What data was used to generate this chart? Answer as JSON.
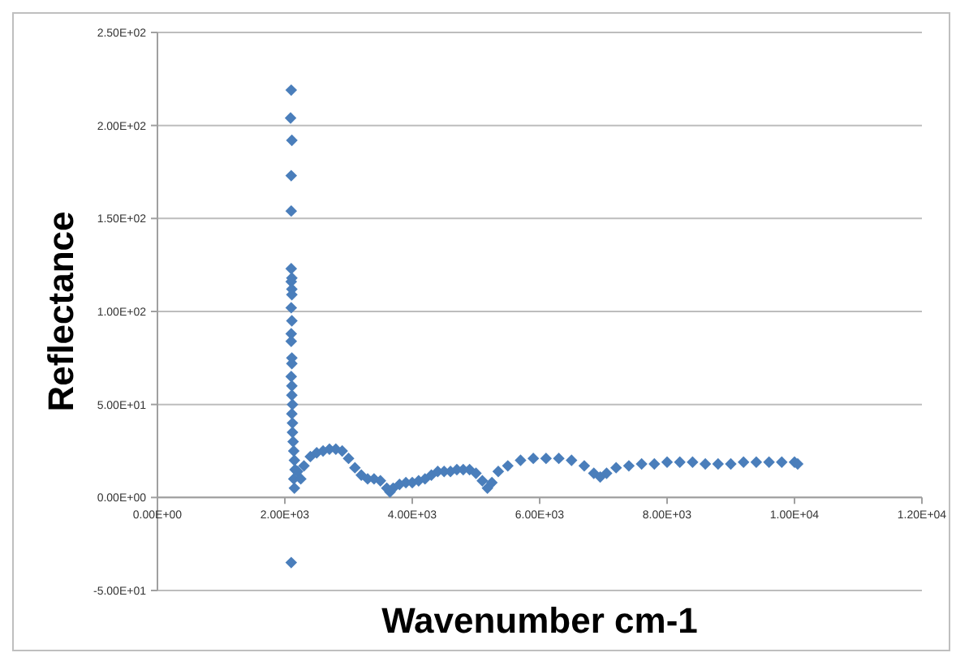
{
  "chart_data": {
    "type": "scatter",
    "xlabel": "Wavenumber cm-1",
    "ylabel": "Reflectance",
    "marker": "diamond",
    "grid": "y",
    "xlim": [
      0,
      12000
    ],
    "ylim": [
      -50,
      250
    ],
    "xticks": [
      {
        "value": 0,
        "label": "0.00E+00"
      },
      {
        "value": 2000,
        "label": "2.00E+03"
      },
      {
        "value": 4000,
        "label": "4.00E+03"
      },
      {
        "value": 6000,
        "label": "6.00E+03"
      },
      {
        "value": 8000,
        "label": "8.00E+03"
      },
      {
        "value": 10000,
        "label": "1.00E+04"
      },
      {
        "value": 12000,
        "label": "1.20E+04"
      }
    ],
    "yticks": [
      {
        "value": -50,
        "label": "-5.00E+01"
      },
      {
        "value": 0,
        "label": "0.00E+00"
      },
      {
        "value": 50,
        "label": "5.00E+01"
      },
      {
        "value": 100,
        "label": "1.00E+02"
      },
      {
        "value": 150,
        "label": "1.50E+02"
      },
      {
        "value": 200,
        "label": "2.00E+02"
      },
      {
        "value": 250,
        "label": "2.50E+02"
      }
    ],
    "series": [
      {
        "color": "#4a7ebb",
        "x": [
          2100,
          2090,
          2110,
          2100,
          2100,
          2100,
          2110,
          2100,
          2110,
          2110,
          2100,
          2110,
          2100,
          2100,
          2110,
          2110,
          2100,
          2110,
          2110,
          2120,
          2110,
          2120,
          2120,
          2130,
          2140,
          2150,
          2160,
          2140,
          2150,
          2100,
          2200,
          2250,
          2300,
          2400,
          2500,
          2600,
          2700,
          2800,
          2900,
          3000,
          3100,
          3200,
          3300,
          3400,
          3500,
          3600,
          3650,
          3700,
          3800,
          3900,
          4000,
          4100,
          4200,
          4300,
          4400,
          4500,
          4600,
          4700,
          4800,
          4900,
          5000,
          5100,
          5180,
          5250,
          5350,
          5500,
          5700,
          5900,
          6100,
          6300,
          6500,
          6700,
          6850,
          6950,
          7050,
          7200,
          7400,
          7600,
          7800,
          8000,
          8200,
          8400,
          8600,
          8800,
          9000,
          9200,
          9400,
          9600,
          9800,
          10000,
          10050
        ],
        "values": [
          219,
          204,
          192,
          173,
          154,
          123,
          118,
          116,
          112,
          109,
          102,
          95,
          88,
          84,
          75,
          72,
          65,
          60,
          55,
          50,
          45,
          40,
          35,
          30,
          25,
          20,
          15,
          10,
          5,
          -35,
          14,
          10,
          17,
          22,
          24,
          25,
          26,
          26,
          25,
          21,
          16,
          12,
          10,
          10,
          9,
          5,
          3,
          5,
          7,
          8,
          8,
          9,
          10,
          12,
          14,
          14,
          14,
          15,
          15,
          15,
          13,
          9,
          5,
          8,
          14,
          17,
          20,
          21,
          21,
          21,
          20,
          17,
          13,
          11,
          13,
          16,
          17,
          18,
          18,
          19,
          19,
          19,
          18,
          18,
          18,
          19,
          19,
          19,
          19,
          19,
          18
        ]
      }
    ]
  }
}
